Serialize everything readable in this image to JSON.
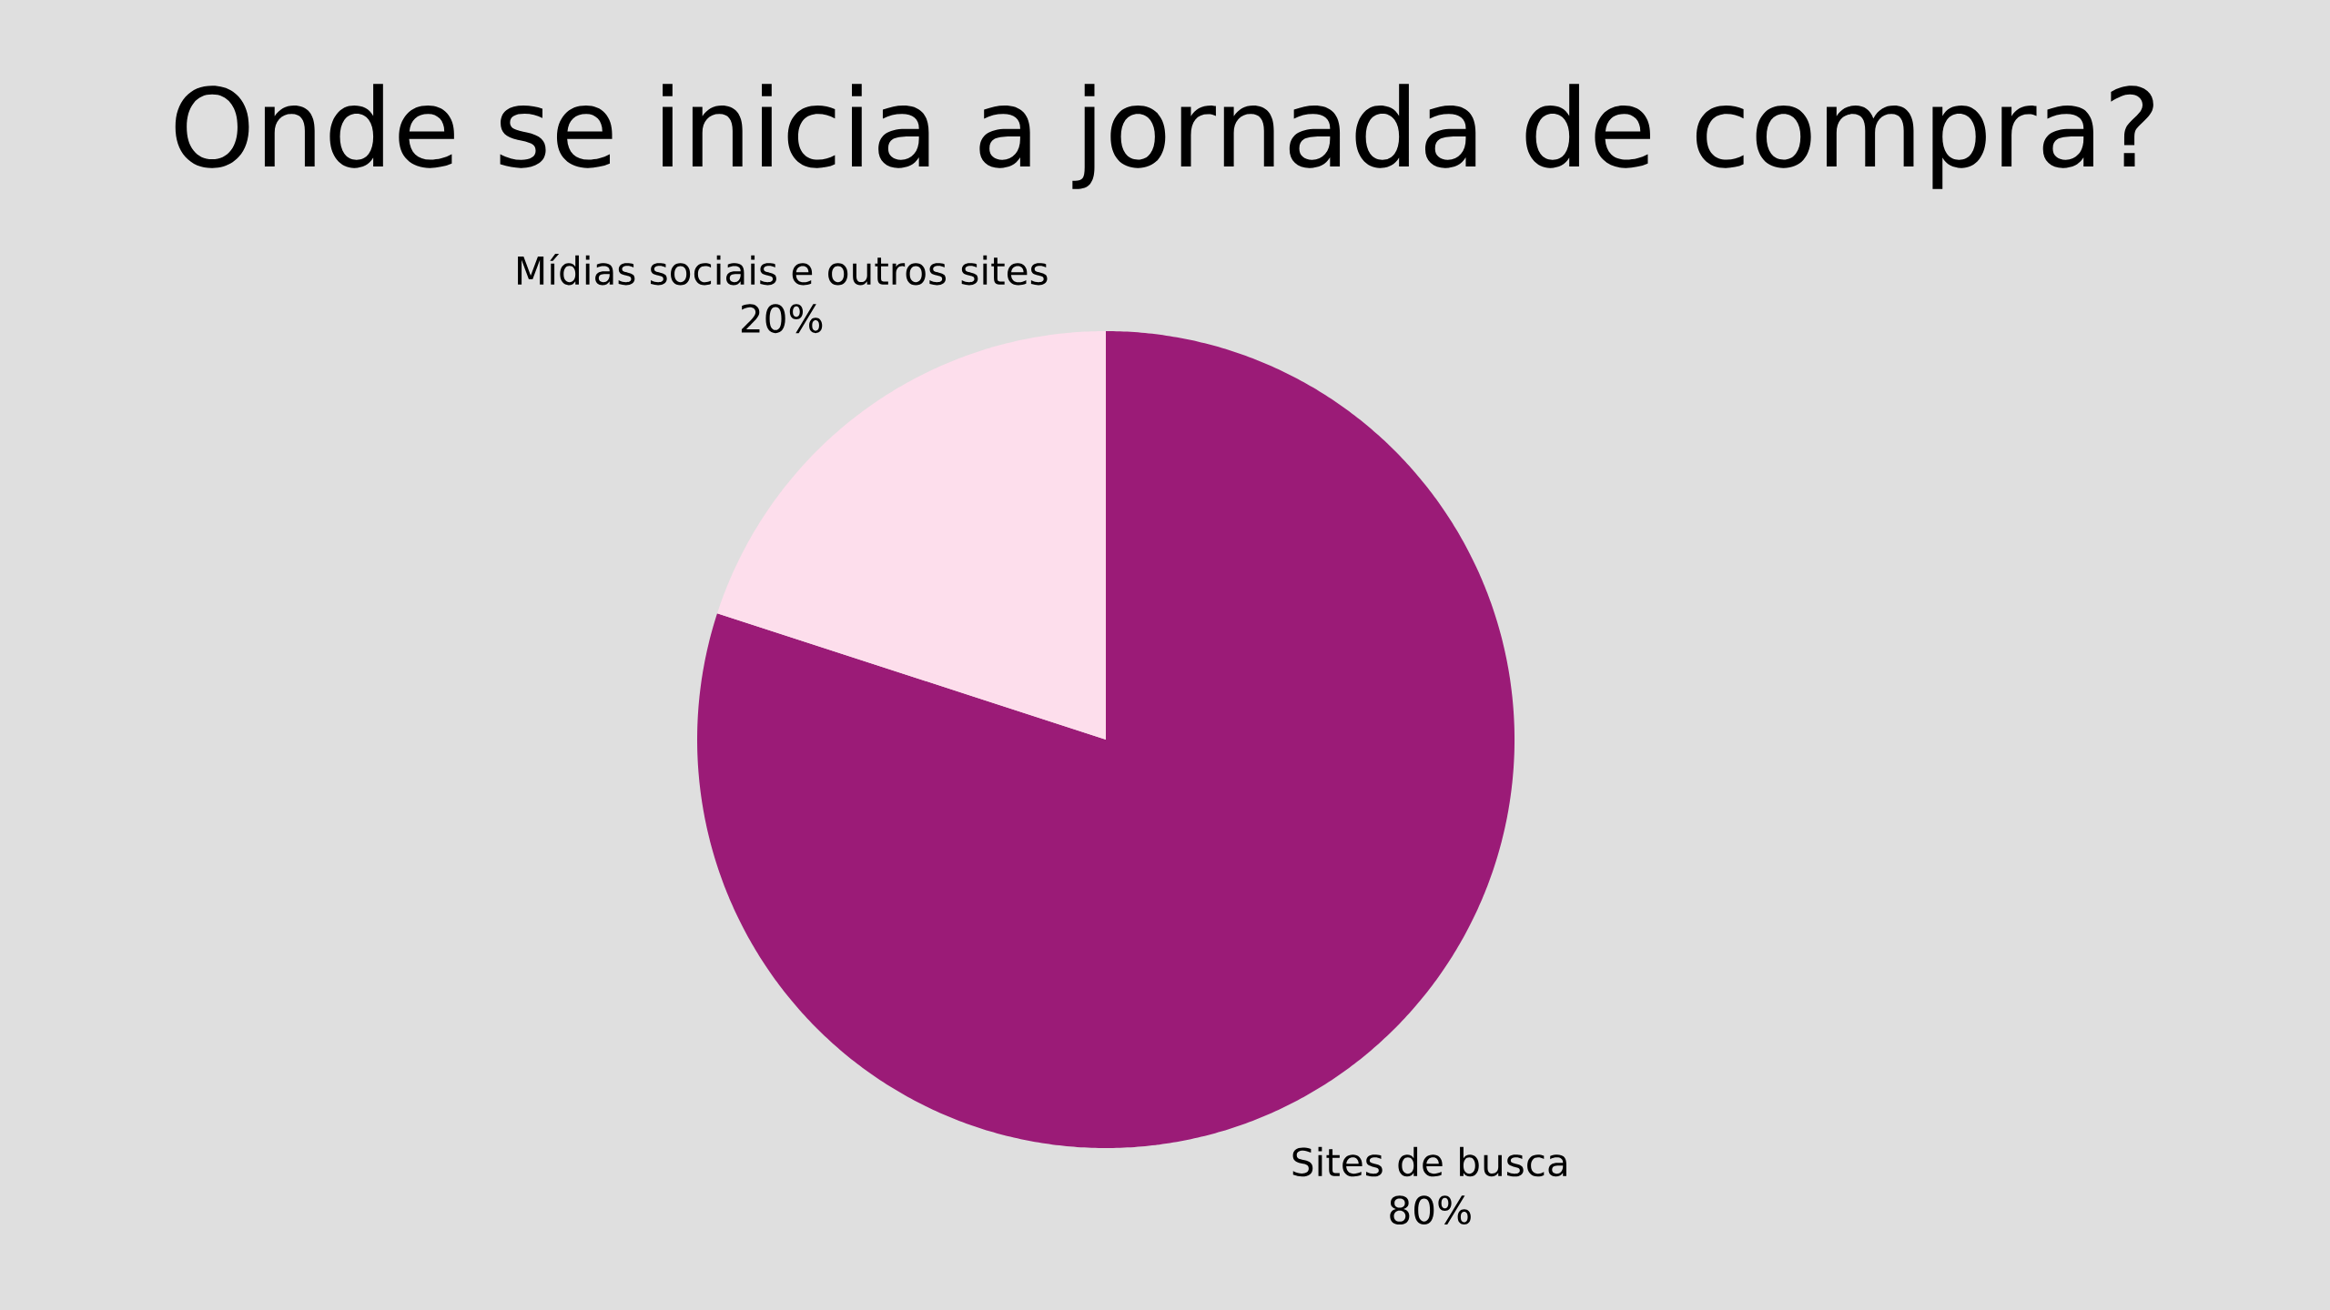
{
  "chart_data": {
    "type": "pie",
    "title": "Onde se inicia a jornada de compra?",
    "categories": [
      "Sites de busca",
      "Mídias sociais e outros sites"
    ],
    "values": [
      80,
      20
    ],
    "colors": [
      "#9b1b77",
      "#fddeec"
    ],
    "value_labels": [
      "80%",
      "20%"
    ]
  }
}
